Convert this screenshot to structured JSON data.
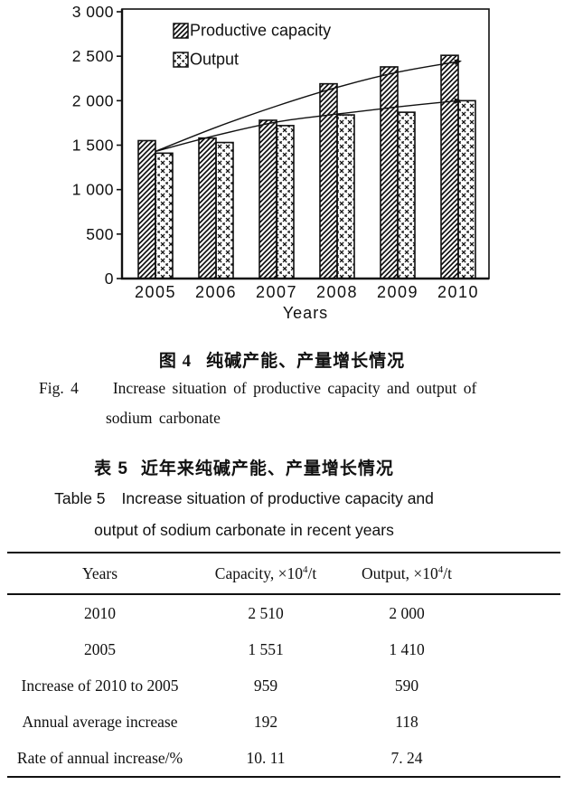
{
  "page": {
    "background": "#ffffff",
    "ink": "#111111"
  },
  "figure4": {
    "caption_zh_label": "图 4",
    "caption_zh_title": "纯碱产能、产量增长情况",
    "caption_en_label": "Fig. 4",
    "caption_en_line1": "Increase situation of productive capacity and output of",
    "caption_en_line2": "sodium carbonate",
    "chart_data": {
      "type": "bar",
      "title": "",
      "categories": [
        "2005",
        "2006",
        "2007",
        "2008",
        "2009",
        "2010"
      ],
      "series": [
        {
          "name": "Productive capacity",
          "pattern": "diagonal-hatch",
          "values": [
            1551,
            1580,
            1780,
            2190,
            2380,
            2510
          ]
        },
        {
          "name": "Output",
          "pattern": "cross-hatch",
          "values": [
            1410,
            1530,
            1720,
            1840,
            1870,
            2000
          ]
        }
      ],
      "trend_lines": [
        {
          "name": "capacity-trend",
          "values": [
            1430,
            1700,
            1940,
            2150,
            2320,
            2440
          ]
        },
        {
          "name": "output-trend",
          "values": [
            1430,
            1610,
            1760,
            1850,
            1930,
            2000
          ]
        }
      ],
      "xlabel": "Years",
      "ylabel": "",
      "ylim": [
        0,
        3000
      ],
      "ytick_step": 500,
      "ytick_labels": [
        "0",
        "500",
        "1 000",
        "1 500",
        "2 000",
        "2 500",
        "3 000"
      ],
      "legend_position": "top-left",
      "grid": false,
      "bar_color": "#111111",
      "background": "#ffffff"
    }
  },
  "table5": {
    "caption_zh_label": "表 5",
    "caption_zh_title": "近年来纯碱产能、产量增长情况",
    "caption_en_label": "Table 5",
    "caption_en_line1": "Increase situation of productive capacity and",
    "caption_en_line2": "output of sodium carbonate in recent years",
    "columns": [
      {
        "label": "Years"
      },
      {
        "label_pre": "Capacity, ×10",
        "label_sup": "4",
        "label_post": "/t"
      },
      {
        "label_pre": "Output, ×10",
        "label_sup": "4",
        "label_post": "/t"
      }
    ],
    "rows": [
      {
        "label": "2010",
        "capacity": "2 510",
        "output": "2 000"
      },
      {
        "label": "2005",
        "capacity": "1 551",
        "output": "1 410"
      },
      {
        "label": "Increase of 2010 to 2005",
        "capacity": "959",
        "output": "590"
      },
      {
        "label": "Annual average increase",
        "capacity": "192",
        "output": "118"
      },
      {
        "label": "Rate of annual increase/%",
        "capacity": "10. 11",
        "output": "7. 24"
      }
    ]
  }
}
